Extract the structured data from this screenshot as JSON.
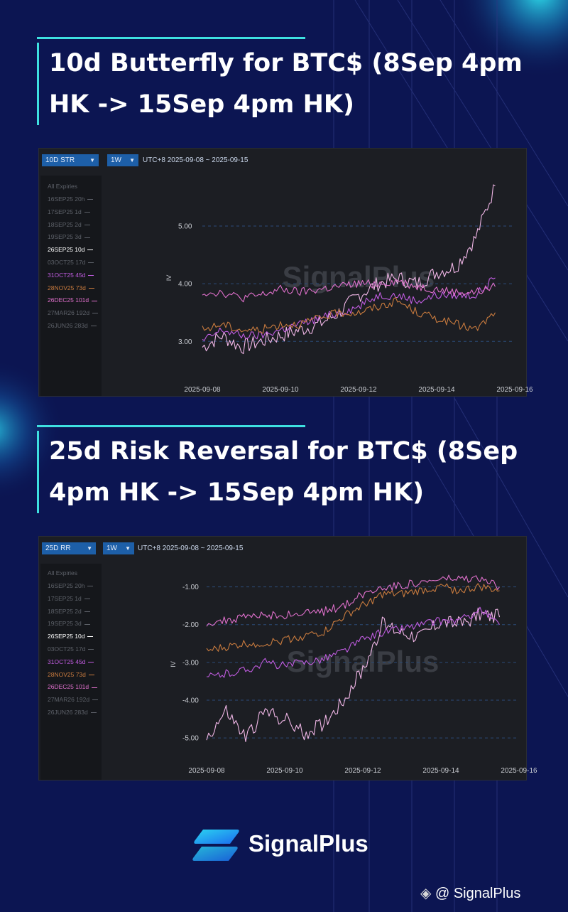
{
  "colors": {
    "background": "#0c1552",
    "accent": "#3ee0e0",
    "panel": "#1c1e23",
    "series_26SEP25": "#f0b6e6",
    "series_31OCT25": "#c05ce0",
    "series_28NOV25": "#c77a3e",
    "series_26DEC25": "#e070cc"
  },
  "panels": [
    {
      "title": "10d Butterfly for BTC$ (8Sep 4pm HK -> 15Sep 4pm HK)",
      "metric_dropdown": "10D STR",
      "period_dropdown": "1W",
      "range_label": "UTC+8 2025-09-08 ~ 2025-09-15",
      "legend_header": "All Expiries",
      "legend": [
        {
          "label": "16SEP25 20h",
          "active": false
        },
        {
          "label": "17SEP25 1d",
          "active": false
        },
        {
          "label": "18SEP25 2d",
          "active": false
        },
        {
          "label": "19SEP25 3d",
          "active": false
        },
        {
          "label": "26SEP25 10d",
          "active": true
        },
        {
          "label": "03OCT25 17d",
          "active": false
        },
        {
          "label": "31OCT25 45d",
          "active": true
        },
        {
          "label": "28NOV25 73d",
          "active": true
        },
        {
          "label": "26DEC25 101d",
          "active": true
        },
        {
          "label": "27MAR26 192d",
          "active": false
        },
        {
          "label": "26JUN26 283d",
          "active": false
        }
      ],
      "watermark": "SignalPlus"
    },
    {
      "title": "25d Risk Reversal for BTC$ (8Sep 4pm HK -> 15Sep 4pm HK)",
      "metric_dropdown": "25D RR",
      "period_dropdown": "1W",
      "range_label": "UTC+8 2025-09-08 ~ 2025-09-15",
      "legend_header": "All Expiries",
      "legend": [
        {
          "label": "16SEP25 20h",
          "active": false
        },
        {
          "label": "17SEP25 1d",
          "active": false
        },
        {
          "label": "18SEP25 2d",
          "active": false
        },
        {
          "label": "19SEP25 3d",
          "active": false
        },
        {
          "label": "26SEP25 10d",
          "active": true
        },
        {
          "label": "03OCT25 17d",
          "active": false
        },
        {
          "label": "31OCT25 45d",
          "active": true
        },
        {
          "label": "28NOV25 73d",
          "active": true
        },
        {
          "label": "26DEC25 101d",
          "active": true
        },
        {
          "label": "27MAR26 192d",
          "active": false
        },
        {
          "label": "26JUN26 283d",
          "active": false
        }
      ],
      "watermark": "SignalPlus"
    }
  ],
  "brand": {
    "name": "SignalPlus",
    "handle": "@ SignalPlus"
  },
  "chart_data": [
    {
      "type": "line",
      "title": "10d Butterfly for BTC$ (8Sep 4pm HK -> 15Sep 4pm HK)",
      "ylabel": "IV",
      "xlim": [
        "2025-09-08",
        "2025-09-16"
      ],
      "ylim": [
        2.4,
        5.8
      ],
      "yticks": [
        3.0,
        4.0,
        5.0
      ],
      "ytick_labels": [
        "3.00",
        "4.00",
        "5.00"
      ],
      "xticks": [
        "2025-09-08",
        "2025-09-10",
        "2025-09-12",
        "2025-09-14",
        "2025-09-16"
      ],
      "grid": "horizontal dashed",
      "x": [
        "2025-09-08",
        "2025-09-08 12:00",
        "2025-09-09",
        "2025-09-09 12:00",
        "2025-09-10",
        "2025-09-10 12:00",
        "2025-09-11",
        "2025-09-11 12:00",
        "2025-09-12",
        "2025-09-12 12:00",
        "2025-09-13",
        "2025-09-13 12:00",
        "2025-09-14",
        "2025-09-14 12:00",
        "2025-09-15",
        "2025-09-15 12:00"
      ],
      "series": [
        {
          "name": "26SEP25 10d",
          "color": "#f0b6e6",
          "values": [
            2.9,
            3.1,
            2.9,
            3.0,
            3.1,
            3.2,
            3.3,
            3.5,
            3.8,
            4.0,
            4.1,
            4.0,
            4.2,
            4.3,
            4.8,
            5.7
          ]
        },
        {
          "name": "31OCT25 45d",
          "color": "#c05ce0",
          "values": [
            3.0,
            3.2,
            3.1,
            3.1,
            3.2,
            3.3,
            3.4,
            3.5,
            3.6,
            3.8,
            3.8,
            3.7,
            3.8,
            3.8,
            3.8,
            4.1
          ]
        },
        {
          "name": "28NOV25 73d",
          "color": "#c77a3e",
          "values": [
            3.2,
            3.3,
            3.2,
            3.2,
            3.3,
            3.3,
            3.4,
            3.5,
            3.5,
            3.6,
            3.7,
            3.5,
            3.4,
            3.3,
            3.2,
            3.5
          ]
        },
        {
          "name": "26DEC25 101d",
          "color": "#e070cc",
          "values": [
            3.85,
            3.85,
            3.75,
            3.8,
            3.9,
            3.85,
            3.9,
            3.95,
            4.0,
            4.0,
            4.05,
            3.95,
            3.9,
            3.85,
            3.85,
            3.95
          ]
        }
      ]
    },
    {
      "type": "line",
      "title": "25d Risk Reversal for BTC$ (8Sep 4pm HK -> 15Sep 4pm HK)",
      "ylabel": "IV",
      "xlim": [
        "2025-09-08",
        "2025-09-16"
      ],
      "ylim": [
        -5.6,
        -0.5
      ],
      "yticks": [
        -1.0,
        -2.0,
        -3.0,
        -4.0,
        -5.0
      ],
      "ytick_labels": [
        "-1.00",
        "-2.00",
        "-3.00",
        "-4.00",
        "-5.00"
      ],
      "xticks": [
        "2025-09-08",
        "2025-09-10",
        "2025-09-12",
        "2025-09-14",
        "2025-09-16"
      ],
      "grid": "horizontal dashed",
      "x": [
        "2025-09-08",
        "2025-09-08 12:00",
        "2025-09-09",
        "2025-09-09 12:00",
        "2025-09-10",
        "2025-09-10 12:00",
        "2025-09-11",
        "2025-09-11 12:00",
        "2025-09-12",
        "2025-09-12 12:00",
        "2025-09-13",
        "2025-09-13 12:00",
        "2025-09-14",
        "2025-09-14 12:00",
        "2025-09-15",
        "2025-09-15 12:00"
      ],
      "series": [
        {
          "name": "26SEP25 10d",
          "color": "#f0b6e6",
          "values": [
            -5.0,
            -4.3,
            -5.0,
            -4.3,
            -4.5,
            -4.9,
            -4.6,
            -4.0,
            -3.2,
            -2.0,
            -2.2,
            -2.3,
            -1.9,
            -2.0,
            -1.7,
            -1.8
          ]
        },
        {
          "name": "31OCT25 45d",
          "color": "#c05ce0",
          "values": [
            -3.4,
            -3.3,
            -3.2,
            -3.0,
            -3.1,
            -3.0,
            -2.9,
            -2.7,
            -2.4,
            -2.2,
            -2.1,
            -2.0,
            -1.9,
            -1.9,
            -1.6,
            -2.0
          ]
        },
        {
          "name": "28NOV25 73d",
          "color": "#c77a3e",
          "values": [
            -2.7,
            -2.6,
            -2.5,
            -2.5,
            -2.4,
            -2.3,
            -2.2,
            -1.8,
            -1.5,
            -1.2,
            -1.2,
            -1.1,
            -1.0,
            -1.1,
            -1.0,
            -1.1
          ]
        },
        {
          "name": "26DEC25 101d",
          "color": "#e070cc",
          "values": [
            -1.95,
            -1.9,
            -1.8,
            -1.75,
            -1.75,
            -1.7,
            -1.65,
            -1.5,
            -1.2,
            -1.0,
            -0.95,
            -0.9,
            -0.8,
            -0.8,
            -0.8,
            -1.0
          ]
        }
      ]
    }
  ]
}
